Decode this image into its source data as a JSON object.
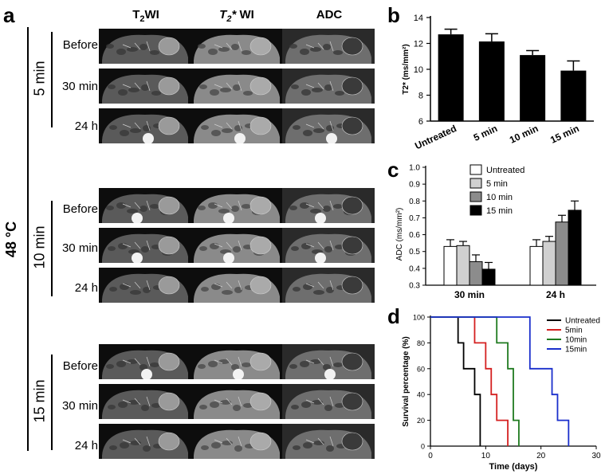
{
  "panel_a": {
    "letter": "a",
    "columns": [
      "T2WI",
      "T2* WI",
      "ADC"
    ],
    "temperature": "48 °C",
    "groups": [
      {
        "label": "5 min",
        "rows": [
          "Before",
          "30 min",
          "24 h"
        ]
      },
      {
        "label": "10 min",
        "rows": [
          "Before",
          "30 min",
          "24 h"
        ]
      },
      {
        "label": "15 min",
        "rows": [
          "Before",
          "30 min",
          "24 h"
        ]
      }
    ]
  },
  "chart_data": [
    {
      "panel": "b",
      "type": "bar",
      "categories": [
        "Untreated",
        "5 min",
        "10 min",
        "15 min"
      ],
      "values": [
        12.7,
        12.15,
        11.1,
        9.9
      ],
      "errors": [
        0.4,
        0.6,
        0.35,
        0.75
      ],
      "ylabel": "T2* (ms/mm²)",
      "ylim": [
        6,
        14
      ],
      "yticks": [
        6,
        8,
        10,
        12,
        14
      ],
      "color": "#000000"
    },
    {
      "panel": "c",
      "type": "bar",
      "categories": [
        "30 min",
        "24 h"
      ],
      "series": [
        {
          "name": "Untreated",
          "values": [
            0.53,
            0.53
          ],
          "errors": [
            0.04,
            0.04
          ],
          "color": "#ffffff"
        },
        {
          "name": "5 min",
          "values": [
            0.535,
            0.56
          ],
          "errors": [
            0.025,
            0.03
          ],
          "color": "#d0d0d0"
        },
        {
          "name": "10 min",
          "values": [
            0.44,
            0.675
          ],
          "errors": [
            0.04,
            0.04
          ],
          "color": "#8c8c8c"
        },
        {
          "name": "15 min",
          "values": [
            0.395,
            0.745
          ],
          "errors": [
            0.04,
            0.055
          ],
          "color": "#000000"
        }
      ],
      "ylabel": "ADC (ms/mm²)",
      "ylim": [
        0.3,
        1.0
      ],
      "yticks": [
        0.3,
        0.4,
        0.5,
        0.6,
        0.7,
        0.8,
        0.9,
        1.0
      ],
      "legend": "top-left"
    },
    {
      "panel": "d",
      "type": "line",
      "step": true,
      "xlabel": "Time (days)",
      "ylabel": "Survival percentage (%)",
      "xlim": [
        0,
        30
      ],
      "ylim": [
        0,
        100
      ],
      "xticks": [
        0,
        10,
        20,
        30
      ],
      "yticks": [
        0,
        20,
        40,
        60,
        80,
        100
      ],
      "legend": "top-right",
      "series": [
        {
          "name": "Untreated",
          "color": "#000000",
          "x": [
            0,
            5,
            6,
            8,
            9
          ],
          "y": [
            100,
            80,
            60,
            40,
            0
          ]
        },
        {
          "name": "5min",
          "color": "#d42020",
          "x": [
            0,
            8,
            10,
            11,
            12,
            14
          ],
          "y": [
            100,
            80,
            60,
            40,
            20,
            0
          ]
        },
        {
          "name": "10min",
          "color": "#1f7a1f",
          "x": [
            0,
            12,
            14,
            15,
            16
          ],
          "y": [
            100,
            80,
            60,
            20,
            0
          ]
        },
        {
          "name": "15min",
          "color": "#1a2fcc",
          "x": [
            0,
            18,
            22,
            23,
            25
          ],
          "y": [
            100,
            60,
            40,
            20,
            0
          ]
        }
      ]
    }
  ]
}
